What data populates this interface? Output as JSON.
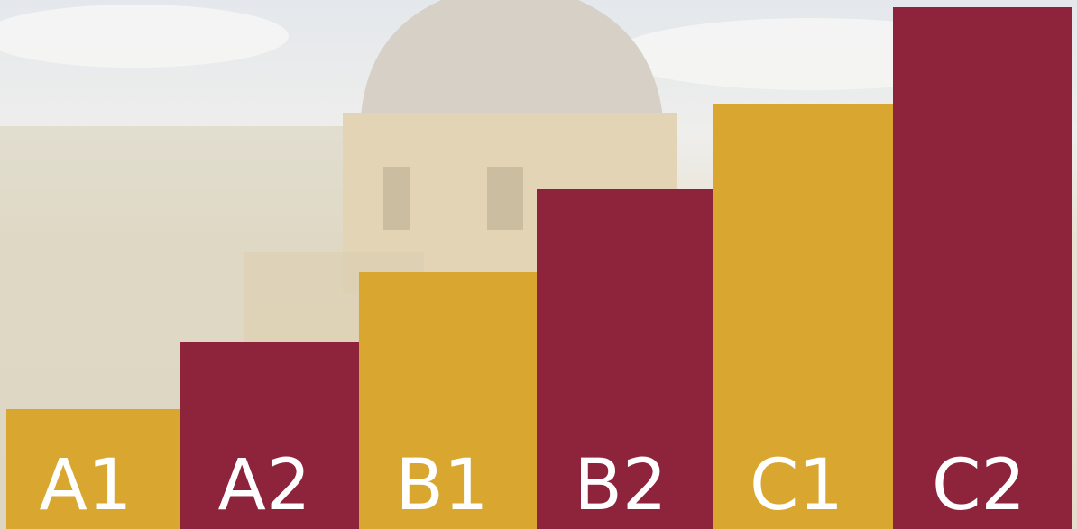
{
  "levels": [
    "A1",
    "A2",
    "B1",
    "B2",
    "C1",
    "C2"
  ]
}
